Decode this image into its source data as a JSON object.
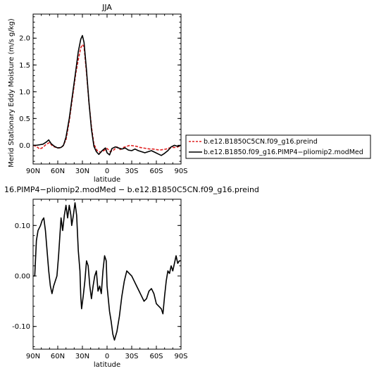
{
  "chart_data": [
    {
      "type": "line",
      "title": "JJA",
      "xlabel": "latitude",
      "ylabel": "Merid Stationary Eddy Moisture (m/s g/kg)",
      "xlim": [
        90,
        -90
      ],
      "ylim": [
        -0.35,
        2.45
      ],
      "xticks": [
        90,
        60,
        30,
        0,
        -30,
        -60,
        -90
      ],
      "xtick_labels": [
        "90N",
        "60N",
        "30N",
        "0",
        "30S",
        "60S",
        "90S"
      ],
      "yticks": [
        0,
        0.5,
        1,
        1.5,
        2
      ],
      "ytick_labels": [
        "0.0",
        "0.5",
        "1.0",
        "1.5",
        "2.0"
      ],
      "legend_position": "right",
      "series": [
        {
          "name": "b.e12.B1850C5CN.f09_g16.preind",
          "color": "#e02020",
          "style": "dashed",
          "points": [
            [
              90,
              0.0
            ],
            [
              86,
              -0.02
            ],
            [
              82,
              -0.07
            ],
            [
              78,
              -0.04
            ],
            [
              74,
              0.02
            ],
            [
              70,
              0.05
            ],
            [
              66,
              -0.02
            ],
            [
              62,
              -0.04
            ],
            [
              58,
              -0.05
            ],
            [
              54,
              -0.02
            ],
            [
              50,
              0.1
            ],
            [
              46,
              0.45
            ],
            [
              42,
              0.9
            ],
            [
              38,
              1.35
            ],
            [
              35,
              1.6
            ],
            [
              32,
              1.82
            ],
            [
              30,
              1.88
            ],
            [
              28,
              1.84
            ],
            [
              25,
              1.35
            ],
            [
              22,
              0.8
            ],
            [
              19,
              0.35
            ],
            [
              16,
              0.02
            ],
            [
              12,
              -0.1
            ],
            [
              8,
              -0.13
            ],
            [
              4,
              -0.1
            ],
            [
              0,
              -0.06
            ],
            [
              -4,
              -0.12
            ],
            [
              -8,
              -0.09
            ],
            [
              -12,
              -0.03
            ],
            [
              -16,
              -0.08
            ],
            [
              -20,
              -0.04
            ],
            [
              -24,
              -0.02
            ],
            [
              -28,
              0.0
            ],
            [
              -32,
              -0.01
            ],
            [
              -36,
              -0.02
            ],
            [
              -40,
              -0.04
            ],
            [
              -44,
              -0.05
            ],
            [
              -48,
              -0.06
            ],
            [
              -52,
              -0.07
            ],
            [
              -56,
              -0.07
            ],
            [
              -60,
              -0.08
            ],
            [
              -64,
              -0.09
            ],
            [
              -68,
              -0.08
            ],
            [
              -72,
              -0.07
            ],
            [
              -76,
              -0.05
            ],
            [
              -80,
              -0.04
            ],
            [
              -84,
              -0.04
            ],
            [
              -88,
              -0.02
            ],
            [
              -90,
              -0.01
            ]
          ]
        },
        {
          "name": "b.e12.B1850.f09_g16.PIMP4−pliomip2.modMed",
          "color": "#000000",
          "style": "solid",
          "points": [
            [
              90,
              0.0
            ],
            [
              86,
              0.0
            ],
            [
              82,
              0.01
            ],
            [
              78,
              0.02
            ],
            [
              74,
              0.06
            ],
            [
              71,
              0.1
            ],
            [
              68,
              0.03
            ],
            [
              64,
              -0.02
            ],
            [
              60,
              -0.05
            ],
            [
              56,
              -0.04
            ],
            [
              53,
              0.0
            ],
            [
              50,
              0.15
            ],
            [
              46,
              0.5
            ],
            [
              42,
              0.95
            ],
            [
              38,
              1.4
            ],
            [
              35,
              1.75
            ],
            [
              32,
              1.98
            ],
            [
              30,
              2.05
            ],
            [
              28,
              1.92
            ],
            [
              25,
              1.4
            ],
            [
              22,
              0.8
            ],
            [
              19,
              0.3
            ],
            [
              16,
              -0.02
            ],
            [
              13,
              -0.12
            ],
            [
              10,
              -0.17
            ],
            [
              6,
              -0.1
            ],
            [
              2,
              -0.05
            ],
            [
              0,
              -0.14
            ],
            [
              -3,
              -0.18
            ],
            [
              -6,
              -0.06
            ],
            [
              -10,
              -0.03
            ],
            [
              -14,
              -0.05
            ],
            [
              -18,
              -0.07
            ],
            [
              -22,
              -0.05
            ],
            [
              -26,
              -0.09
            ],
            [
              -30,
              -0.1
            ],
            [
              -34,
              -0.07
            ],
            [
              -38,
              -0.1
            ],
            [
              -42,
              -0.12
            ],
            [
              -46,
              -0.14
            ],
            [
              -50,
              -0.12
            ],
            [
              -54,
              -0.1
            ],
            [
              -58,
              -0.13
            ],
            [
              -62,
              -0.16
            ],
            [
              -66,
              -0.19
            ],
            [
              -70,
              -0.15
            ],
            [
              -74,
              -0.1
            ],
            [
              -78,
              -0.03
            ],
            [
              -82,
              0.0
            ],
            [
              -86,
              -0.02
            ],
            [
              -90,
              0.0
            ]
          ]
        }
      ]
    },
    {
      "type": "line",
      "title": "16.PIMP4−pliomip2.modMed − b.e12.B1850C5CN.f09_g16.preind",
      "xlabel": "latitude",
      "ylabel": "",
      "xlim": [
        90,
        -90
      ],
      "ylim": [
        -0.145,
        0.152
      ],
      "xticks": [
        90,
        60,
        30,
        0,
        -30,
        -60,
        -90
      ],
      "xtick_labels": [
        "90N",
        "60N",
        "30N",
        "0",
        "30S",
        "60S",
        "90S"
      ],
      "yticks": [
        -0.1,
        0,
        0.1
      ],
      "ytick_labels": [
        "-0.10",
        "0.00",
        "0.10"
      ],
      "series": [
        {
          "color": "#000000",
          "style": "solid",
          "points": [
            [
              90,
              0.0
            ],
            [
              88,
              0.0
            ],
            [
              86,
              0.07
            ],
            [
              84,
              0.09
            ],
            [
              81,
              0.1
            ],
            [
              79,
              0.11
            ],
            [
              77,
              0.115
            ],
            [
              75,
              0.09
            ],
            [
              73,
              0.05
            ],
            [
              71,
              0.01
            ],
            [
              69,
              -0.02
            ],
            [
              67,
              -0.035
            ],
            [
              65,
              -0.02
            ],
            [
              63,
              -0.01
            ],
            [
              61,
              0.0
            ],
            [
              59,
              0.04
            ],
            [
              57,
              0.09
            ],
            [
              56,
              0.115
            ],
            [
              54,
              0.09
            ],
            [
              52,
              0.12
            ],
            [
              50,
              0.14
            ],
            [
              48,
              0.115
            ],
            [
              46,
              0.14
            ],
            [
              44,
              0.12
            ],
            [
              43,
              0.1
            ],
            [
              41,
              0.12
            ],
            [
              39,
              0.145
            ],
            [
              37,
              0.12
            ],
            [
              35,
              0.05
            ],
            [
              33,
              0.01
            ],
            [
              32,
              -0.04
            ],
            [
              31,
              -0.065
            ],
            [
              29,
              -0.04
            ],
            [
              27,
              -0.01
            ],
            [
              25,
              0.03
            ],
            [
              23,
              0.02
            ],
            [
              21,
              -0.02
            ],
            [
              19,
              -0.045
            ],
            [
              17,
              -0.02
            ],
            [
              15,
              0.0
            ],
            [
              13,
              0.01
            ],
            [
              11,
              -0.03
            ],
            [
              9,
              -0.02
            ],
            [
              7,
              -0.035
            ],
            [
              5,
              0.01
            ],
            [
              3,
              0.04
            ],
            [
              1,
              0.03
            ],
            [
              0,
              -0.02
            ],
            [
              -3,
              -0.07
            ],
            [
              -5,
              -0.09
            ],
            [
              -7,
              -0.115
            ],
            [
              -9,
              -0.127
            ],
            [
              -12,
              -0.11
            ],
            [
              -15,
              -0.08
            ],
            [
              -18,
              -0.04
            ],
            [
              -21,
              -0.01
            ],
            [
              -24,
              0.01
            ],
            [
              -27,
              0.005
            ],
            [
              -30,
              0.0
            ],
            [
              -33,
              -0.01
            ],
            [
              -36,
              -0.02
            ],
            [
              -39,
              -0.03
            ],
            [
              -42,
              -0.04
            ],
            [
              -45,
              -0.05
            ],
            [
              -48,
              -0.045
            ],
            [
              -51,
              -0.03
            ],
            [
              -54,
              -0.025
            ],
            [
              -57,
              -0.035
            ],
            [
              -60,
              -0.055
            ],
            [
              -63,
              -0.06
            ],
            [
              -66,
              -0.065
            ],
            [
              -68,
              -0.075
            ],
            [
              -70,
              -0.04
            ],
            [
              -72,
              -0.01
            ],
            [
              -74,
              0.01
            ],
            [
              -76,
              0.005
            ],
            [
              -78,
              0.02
            ],
            [
              -80,
              0.01
            ],
            [
              -82,
              0.025
            ],
            [
              -84,
              0.04
            ],
            [
              -86,
              0.025
            ],
            [
              -88,
              0.03
            ],
            [
              -90,
              0.03
            ]
          ]
        }
      ]
    }
  ]
}
